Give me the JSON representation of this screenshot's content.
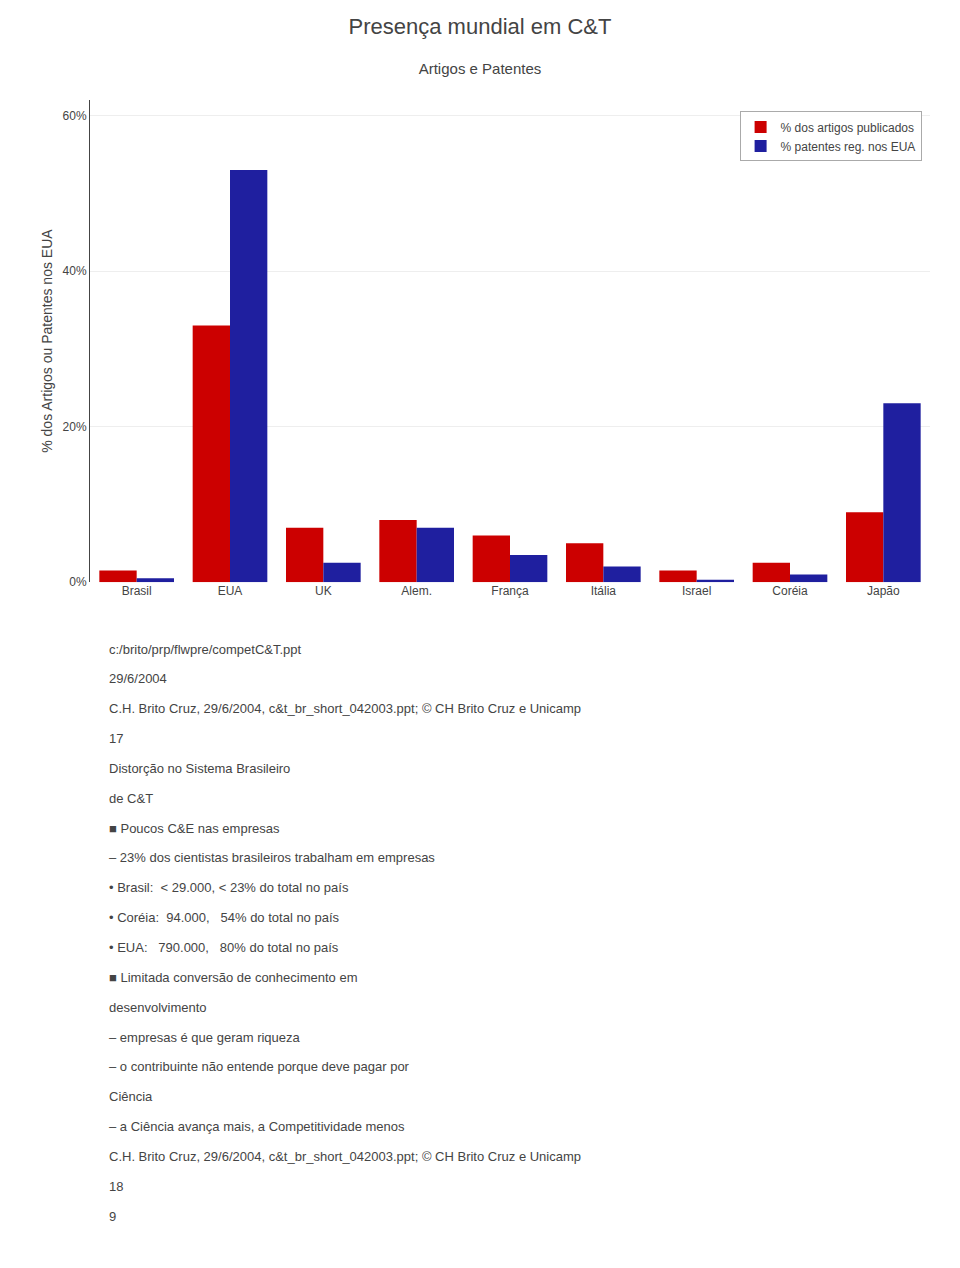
{
  "chart_data": {
    "type": "bar",
    "title": "Presença mundial em C&T",
    "subtitle": "Artigos e Patentes",
    "categories": [
      "Brasil",
      "EUA",
      "UK",
      "Alem.",
      "França",
      "Itália",
      "Israel",
      "Coréia",
      "Japão"
    ],
    "series": [
      {
        "name": "% dos artigos publicados",
        "color": "#cc0000",
        "values": [
          1.5,
          33,
          7,
          8,
          6,
          5,
          1.5,
          2.5,
          9
        ]
      },
      {
        "name": "% patentes reg. nos EUA",
        "color": "#1f1f9f",
        "values": [
          0.5,
          53,
          2.5,
          7,
          3.5,
          2,
          0.3,
          1,
          23
        ]
      }
    ],
    "ylabel": "% dos Artigos ou Patentes nos EUA",
    "ylim": [
      0,
      62
    ],
    "yticks": [
      {
        "value": 0,
        "label": "0%"
      },
      {
        "value": 20,
        "label": "20%"
      },
      {
        "value": 40,
        "label": "40%"
      },
      {
        "value": 60,
        "label": "60%"
      }
    ],
    "grid": true,
    "legend": "upper right",
    "annotations": [
      "c:/brito/prp/flwpre/competC&T.ppt",
      "29/6/2004",
      "C.H. Brito Cruz, 29/6/2004, c&t_br_short_042003.ppt; © CH Brito Cruz e Unicamp",
      "17",
      "Distorção no Sistema Brasileiro",
      "de C&T",
      "■ Poucos C&E nas empresas",
      "– 23% dos cientistas brasileiros trabalham em empresas",
      "• Brasil:  < 29.000, < 23% do total no país",
      "• Coréia:  94.000,   54% do total no país",
      "• EUA:   790.000,   80% do total no país",
      "■ Limitada conversão de conhecimento em",
      "desenvolvimento",
      "– empresas é que geram riqueza",
      "– o contribuinte não entende porque deve pagar por",
      "Ciência",
      "– a Ciência avança mais, a Competitividade menos",
      "C.H. Brito Cruz, 29/6/2004, c&t_br_short_042003.ppt; © CH Brito Cruz e Unicamp",
      "18",
      "9"
    ]
  }
}
